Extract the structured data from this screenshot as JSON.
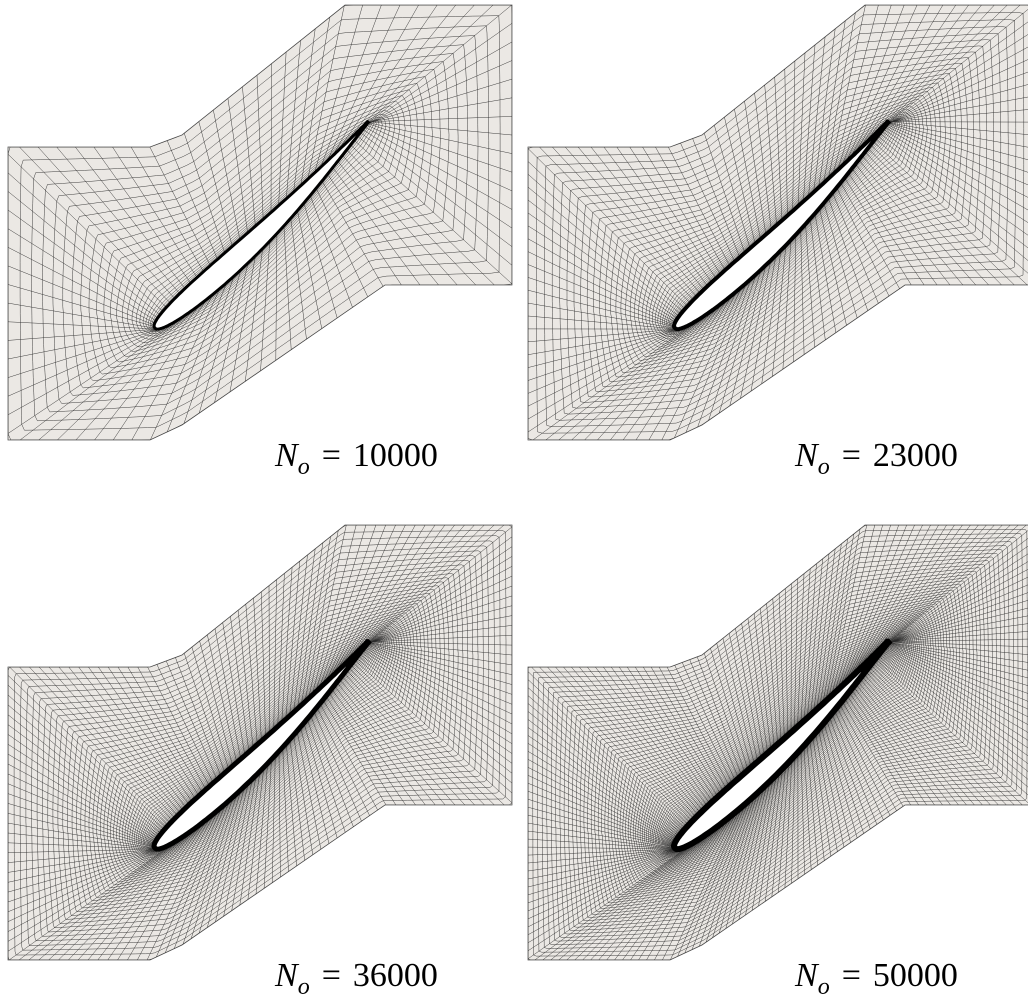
{
  "panels": [
    {
      "variable": "N",
      "subscript": "o",
      "relation": "=",
      "value": 10000
    },
    {
      "variable": "N",
      "subscript": "o",
      "relation": "=",
      "value": 23000
    },
    {
      "variable": "N",
      "subscript": "o",
      "relation": "=",
      "value": 36000
    },
    {
      "variable": "N",
      "subscript": "o",
      "relation": "=",
      "value": 50000
    }
  ]
}
